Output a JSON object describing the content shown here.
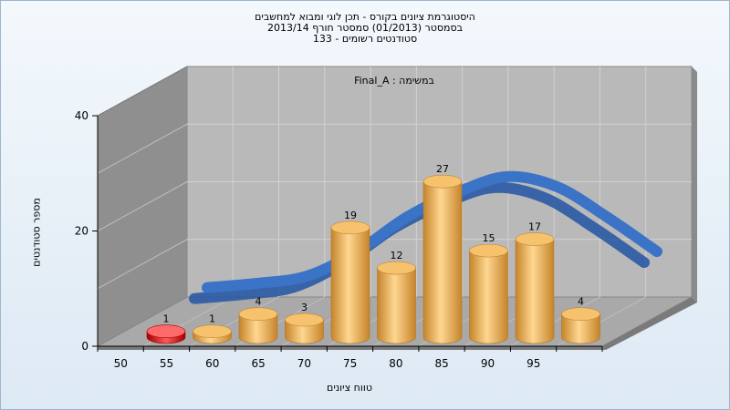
{
  "colors": {
    "bar": "#f0b458",
    "bar_dark": "#c5842a",
    "bar_first": "#e02020",
    "ribbon": "#3b73c6",
    "wall_left": "#8f8f8f",
    "wall_back": "#b9b9b9",
    "floor": "#a9a9a9"
  },
  "chart_data": {
    "type": "bar",
    "title_lines": [
      "היסטוגרמת ציונים בקורס - תכן לוגי ומבוא למחשבים",
      "בסמסטר  (01/2013)  סמסטר חורף 2013/14",
      "סטודנטים רשומים - 133"
    ],
    "series_label": "Final_A : במשימה",
    "xlabel": "טווח ציונים",
    "ylabel": "מספר סטודנטים",
    "categories": [
      "50",
      "55",
      "60",
      "65",
      "70",
      "75",
      "80",
      "85",
      "90",
      "95"
    ],
    "values": [
      1,
      1,
      4,
      3,
      19,
      12,
      27,
      15,
      17,
      4
    ],
    "value_labels": [
      "1",
      "1",
      "4",
      "3",
      "19",
      "12",
      "27",
      "15",
      "17",
      "4"
    ],
    "y_ticks": [
      "0",
      "20",
      "40"
    ],
    "ylim": [
      0,
      40
    ],
    "grid": true,
    "overlay": "smoothed distribution ribbon"
  }
}
